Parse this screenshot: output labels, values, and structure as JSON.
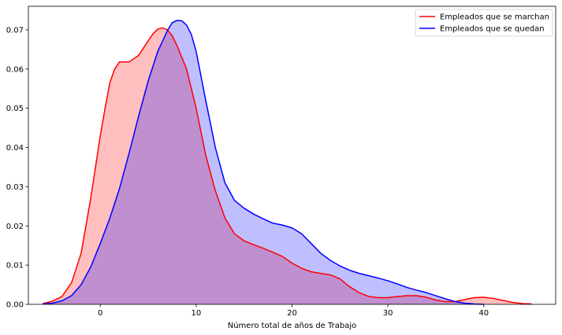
{
  "chart_data": {
    "type": "area",
    "xlabel": "Número total de años de Trabajo",
    "ylabel": "",
    "xlim": [
      -7.5,
      47.5
    ],
    "ylim": [
      0,
      0.076
    ],
    "xticks": [
      0,
      10,
      20,
      30,
      40
    ],
    "yticks": [
      0.0,
      0.01,
      0.02,
      0.03,
      0.04,
      0.05,
      0.06,
      0.07
    ],
    "ytick_labels": [
      "0.00",
      "0.01",
      "0.02",
      "0.03",
      "0.04",
      "0.05",
      "0.06",
      "0.07"
    ],
    "grid": false,
    "legend_position": "top-right",
    "series": [
      {
        "name": "Empleados que se marchan",
        "color": "#ff0000",
        "fill_color": "#ff0000",
        "x": [
          -6,
          -5,
          -4,
          -3,
          -2,
          -1,
          0,
          0.5,
          1,
          1.5,
          2,
          3,
          4,
          5,
          5.5,
          6,
          6.5,
          7,
          7.5,
          8,
          9,
          10,
          11,
          12,
          13,
          14,
          15,
          16,
          17,
          18,
          19,
          20,
          21,
          22,
          23,
          24,
          25,
          26,
          27,
          28,
          29,
          30,
          31,
          32,
          33,
          34,
          35,
          36,
          37,
          38,
          39,
          40,
          41,
          42,
          43,
          44,
          45
        ],
        "y": [
          0.0002,
          0.0008,
          0.002,
          0.0055,
          0.013,
          0.027,
          0.043,
          0.05,
          0.0565,
          0.06,
          0.0618,
          0.0618,
          0.0635,
          0.0672,
          0.069,
          0.0702,
          0.0705,
          0.07,
          0.0685,
          0.066,
          0.06,
          0.05,
          0.038,
          0.029,
          0.022,
          0.018,
          0.0162,
          0.0152,
          0.0143,
          0.0133,
          0.0122,
          0.0105,
          0.0092,
          0.0083,
          0.0079,
          0.0075,
          0.0065,
          0.0045,
          0.003,
          0.002,
          0.0017,
          0.0017,
          0.002,
          0.0022,
          0.0022,
          0.0018,
          0.0011,
          0.0007,
          0.0007,
          0.0012,
          0.0017,
          0.0018,
          0.0015,
          0.001,
          0.0005,
          0.0002,
          0.0001
        ]
      },
      {
        "name": "Empleados que se quedan",
        "color": "#0000ff",
        "fill_color": "#0000ff",
        "x": [
          -6,
          -5,
          -4,
          -3,
          -2,
          -1,
          0,
          1,
          2,
          3,
          4,
          5,
          6,
          7,
          7.5,
          8,
          8.5,
          9,
          9.5,
          10,
          11,
          12,
          13,
          14,
          15,
          16,
          17,
          18,
          19,
          20,
          21,
          22,
          23,
          24,
          25,
          26,
          27,
          28,
          29,
          30,
          31,
          32,
          33,
          34,
          35,
          36,
          37,
          38,
          39,
          40
        ],
        "y": [
          0.0001,
          0.0003,
          0.0009,
          0.0022,
          0.005,
          0.0095,
          0.0155,
          0.022,
          0.0295,
          0.0385,
          0.048,
          0.057,
          0.0645,
          0.0698,
          0.0718,
          0.0724,
          0.0723,
          0.0712,
          0.0688,
          0.0645,
          0.052,
          0.04,
          0.031,
          0.0265,
          0.0245,
          0.023,
          0.0218,
          0.0207,
          0.0202,
          0.0195,
          0.018,
          0.0155,
          0.013,
          0.0112,
          0.0098,
          0.0087,
          0.0079,
          0.0073,
          0.0067,
          0.006,
          0.0052,
          0.0043,
          0.0036,
          0.003,
          0.0022,
          0.0014,
          0.0007,
          0.0003,
          0.0001,
          0.0
        ]
      }
    ]
  }
}
